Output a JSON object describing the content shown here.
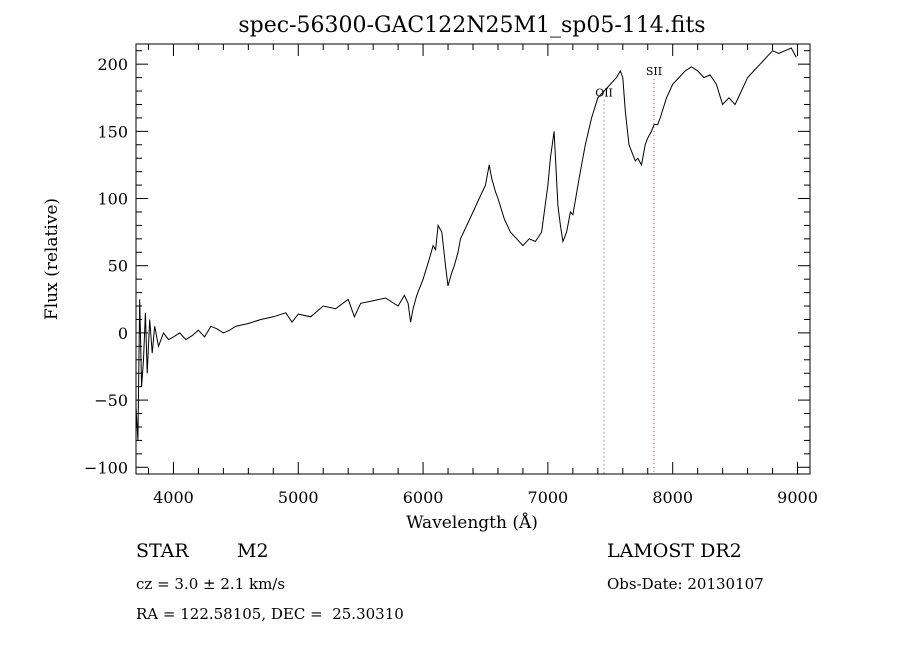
{
  "chart_data": {
    "type": "line",
    "title": "spec-56300-GAC122N25M1_sp05-114.fits",
    "xlabel": "Wavelength (Å)",
    "ylabel": "Flux (relative)",
    "xlim": [
      3700,
      9100
    ],
    "ylim": [
      -105,
      215
    ],
    "xticks": [
      4000,
      5000,
      6000,
      7000,
      8000,
      9000
    ],
    "yticks": [
      -100,
      -50,
      0,
      50,
      100,
      150,
      200
    ],
    "ytick_labels": [
      "−100",
      "−50",
      "0",
      "50",
      "100",
      "150",
      "200"
    ],
    "grid": false,
    "series": [
      {
        "x": [
          3700,
          3715,
          3730,
          3745,
          3760,
          3775,
          3790,
          3810,
          3830,
          3850,
          3880,
          3920,
          3960,
          4000,
          4050,
          4100,
          4150,
          4200,
          4250,
          4300,
          4350,
          4400,
          4450,
          4500,
          4600,
          4700,
          4800,
          4900,
          4950,
          5000,
          5100,
          5200,
          5300,
          5400,
          5450,
          5500,
          5600,
          5700,
          5800,
          5850,
          5880,
          5900,
          5920,
          5950,
          6000,
          6050,
          6080,
          6100,
          6120,
          6150,
          6180,
          6200,
          6230,
          6250,
          6280,
          6300,
          6350,
          6400,
          6450,
          6500,
          6530,
          6550,
          6580,
          6600,
          6650,
          6700,
          6750,
          6800,
          6850,
          6900,
          6950,
          7000,
          7020,
          7050,
          7080,
          7100,
          7120,
          7150,
          7180,
          7200,
          7250,
          7300,
          7350,
          7400,
          7450,
          7500,
          7550,
          7580,
          7600,
          7620,
          7650,
          7700,
          7720,
          7750,
          7780,
          7800,
          7830,
          7850,
          7880,
          7900,
          7950,
          8000,
          8050,
          8100,
          8150,
          8200,
          8250,
          8300,
          8350,
          8400,
          8450,
          8500,
          8550,
          8600,
          8650,
          8700,
          8750,
          8800,
          8850,
          8900,
          8950,
          8990
        ],
        "y": [
          -55,
          -80,
          25,
          -40,
          -20,
          15,
          -30,
          10,
          -15,
          5,
          -10,
          0,
          -5,
          -3,
          0,
          -5,
          -2,
          2,
          -3,
          5,
          3,
          0,
          2,
          5,
          7,
          10,
          12,
          15,
          8,
          14,
          12,
          20,
          18,
          25,
          12,
          22,
          24,
          26,
          20,
          28,
          22,
          8,
          18,
          28,
          40,
          55,
          65,
          62,
          80,
          75,
          50,
          35,
          45,
          50,
          60,
          70,
          80,
          90,
          100,
          110,
          125,
          115,
          105,
          100,
          85,
          75,
          70,
          65,
          70,
          68,
          75,
          110,
          130,
          150,
          95,
          80,
          68,
          75,
          90,
          88,
          115,
          140,
          160,
          175,
          180,
          185,
          190,
          195,
          190,
          165,
          140,
          128,
          130,
          125,
          140,
          145,
          150,
          155,
          155,
          160,
          175,
          185,
          190,
          195,
          198,
          195,
          190,
          192,
          185,
          170,
          175,
          170,
          180,
          190,
          195,
          200,
          205,
          210,
          208,
          210,
          212,
          205
        ]
      }
    ],
    "annotations": [
      {
        "label": "OII",
        "x": 7450,
        "y": 176,
        "line": "dotted"
      },
      {
        "label": "SII",
        "x": 7850,
        "y": 192,
        "line": "dotted"
      }
    ],
    "colors": {
      "line": "#000000",
      "marker_line": "#b04040"
    }
  },
  "info": {
    "object_class": "STAR",
    "subclass": "M2",
    "redshift": "cz = 3.0 ± 2.1 km/s",
    "coords": "RA = 122.58105, DEC =  25.30310",
    "survey": "LAMOST DR2",
    "obs_date": "Obs-Date: 20130107"
  }
}
